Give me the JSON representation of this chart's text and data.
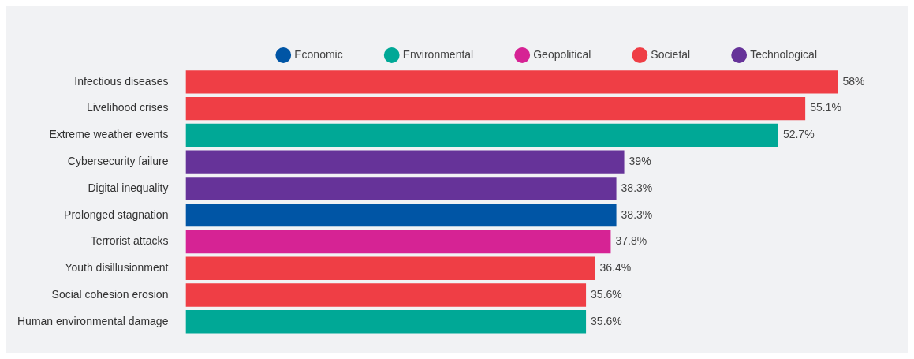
{
  "chart_data": {
    "type": "bar",
    "orientation": "horizontal",
    "stacked": true,
    "legend": "top",
    "tick_labels": "y",
    "categories": [
      "Infectious diseases",
      "Livelihood crises",
      "Extreme weather events",
      "Cybersecurity failure",
      "Digital inequality",
      "Prolonged stagnation",
      "Terrorist attacks",
      "Youth disillusionment",
      "Social cohesion erosion",
      "Human environmental damage"
    ],
    "series": [
      {
        "name": "Economic",
        "color": "#0055a5",
        "values": [
          null,
          null,
          null,
          null,
          null,
          38.3,
          null,
          null,
          null,
          null
        ],
        "value_labels": [
          null,
          null,
          null,
          null,
          null,
          "38.3%",
          null,
          null,
          null,
          null
        ]
      },
      {
        "name": "Environmental",
        "color": "#00a896",
        "values": [
          null,
          null,
          52.7,
          null,
          null,
          null,
          null,
          null,
          null,
          35.6
        ],
        "value_labels": [
          null,
          null,
          "52.7%",
          null,
          null,
          null,
          null,
          null,
          null,
          "35.6%"
        ]
      },
      {
        "name": "Geopolitical",
        "color": "#d62394",
        "values": [
          null,
          null,
          null,
          null,
          null,
          null,
          37.8,
          null,
          null,
          null
        ],
        "value_labels": [
          null,
          null,
          null,
          null,
          null,
          null,
          "37.8%",
          null,
          null,
          null
        ]
      },
      {
        "name": "Societal",
        "color": "#ef3e45",
        "values": [
          58,
          55.1,
          null,
          null,
          null,
          null,
          null,
          36.4,
          35.6,
          null
        ],
        "value_labels": [
          "58%",
          "55.1%",
          null,
          null,
          null,
          null,
          null,
          "36.4%",
          "35.6%",
          null
        ]
      },
      {
        "name": "Technological",
        "color": "#663399",
        "values": [
          null,
          null,
          null,
          39,
          38.3,
          null,
          null,
          null,
          null,
          null
        ],
        "value_labels": [
          null,
          null,
          null,
          "39%",
          "38.3%",
          null,
          null,
          null,
          null,
          null
        ]
      }
    ]
  }
}
